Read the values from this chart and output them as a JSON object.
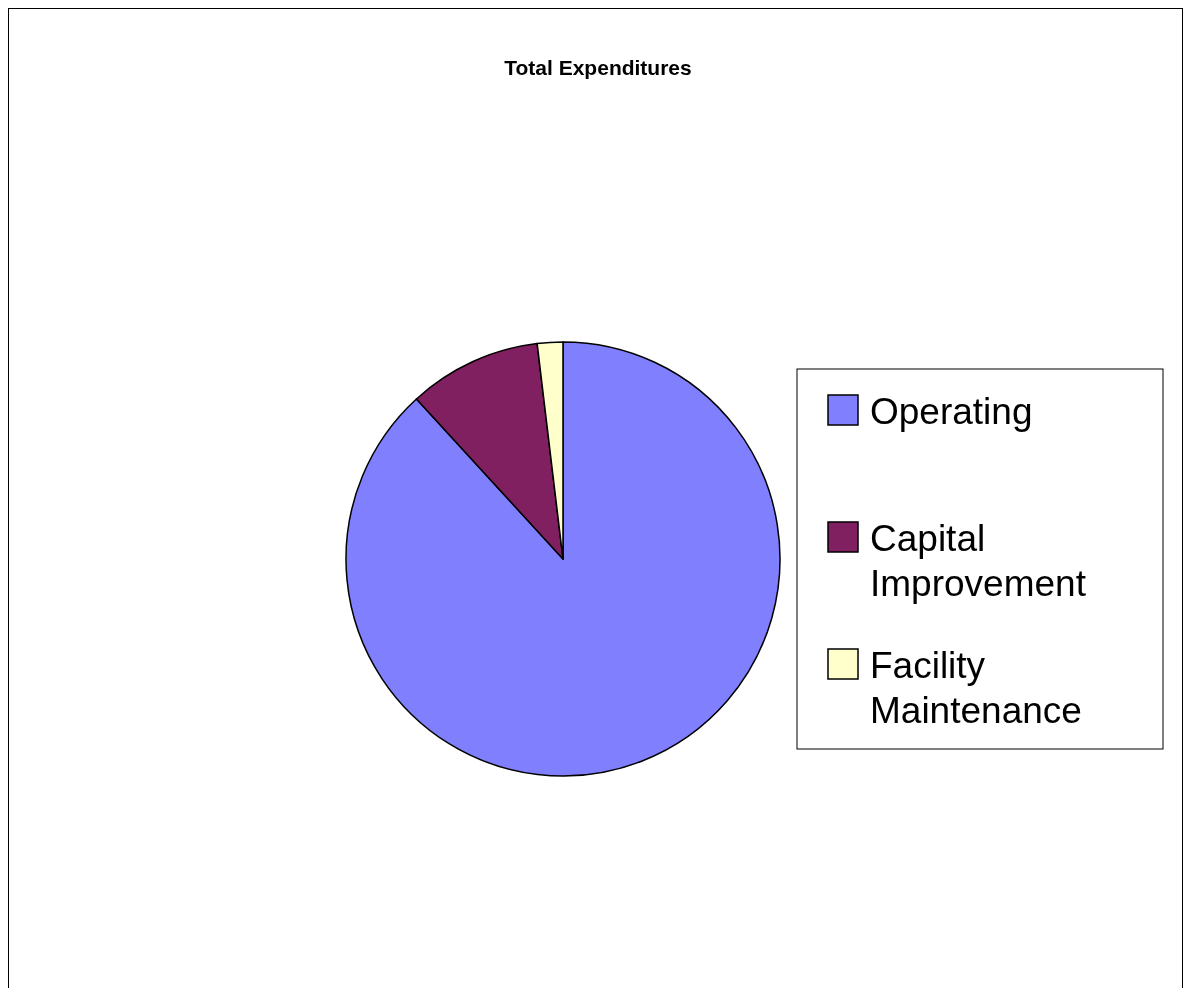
{
  "chart_data": {
    "type": "pie",
    "title": "Total Expenditures",
    "categories": [
      "Operating",
      "Capital Improvement",
      "Facility Maintenance"
    ],
    "values": [
      88.2,
      9.9,
      1.9
    ],
    "colors": [
      "#8080ff",
      "#802060",
      "#ffffcc"
    ],
    "legend": "right"
  }
}
